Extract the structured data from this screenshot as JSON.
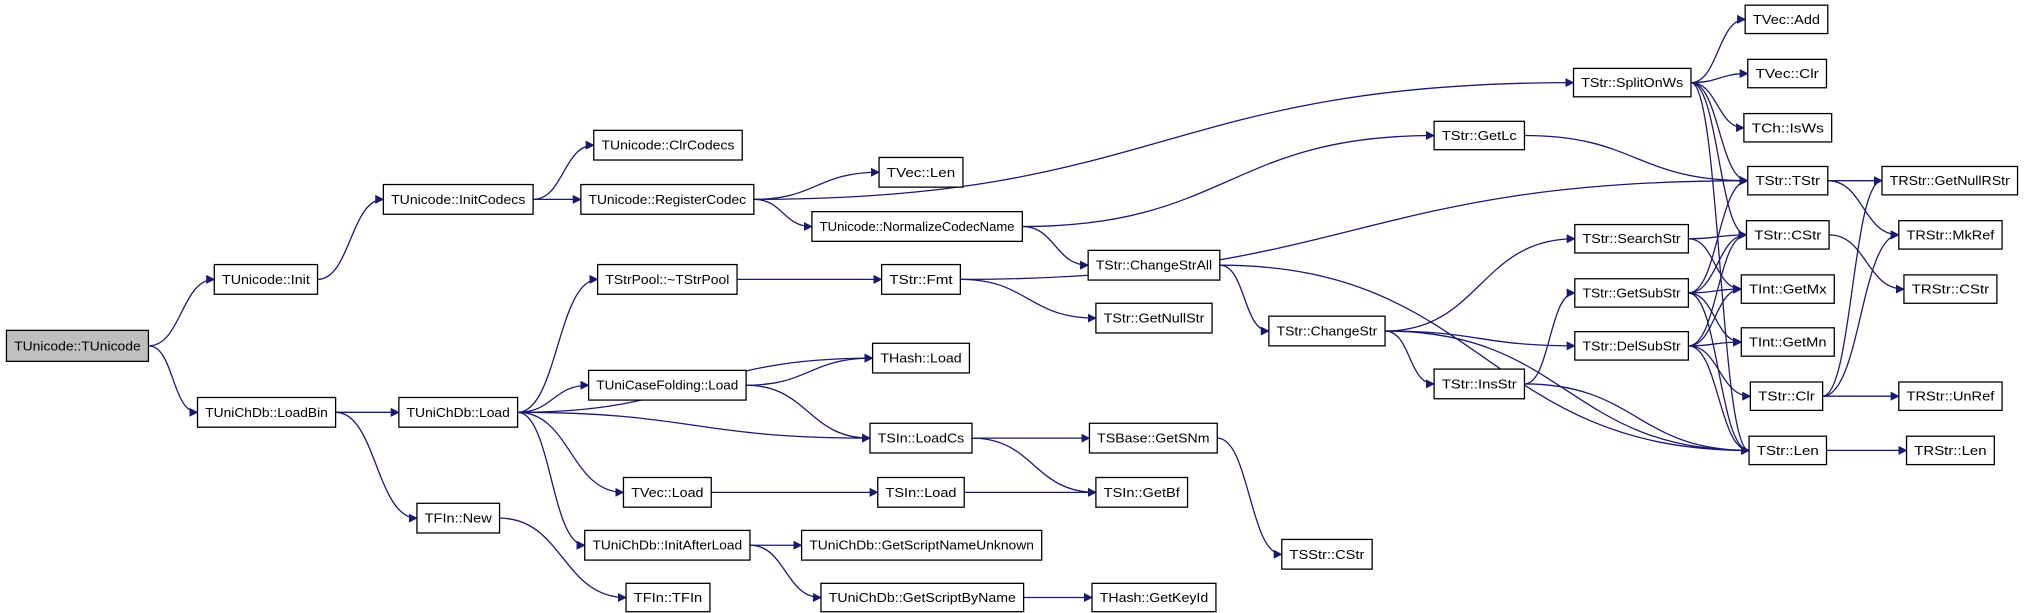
{
  "colors": {
    "edge": "#191970",
    "root_fill": "#bfbfbf",
    "node_fill": "#ffffff",
    "node_border": "#000000"
  },
  "nodes": [
    {
      "id": "tunicode_ctor",
      "label": "TUnicode::TUnicode",
      "root": true
    },
    {
      "id": "tunicode_init",
      "label": "TUnicode::Init"
    },
    {
      "id": "init_codecs",
      "label": "TUnicode::InitCodecs"
    },
    {
      "id": "clr_codecs",
      "label": "TUnicode::ClrCodecs"
    },
    {
      "id": "register_codec",
      "label": "TUnicode::RegisterCodec"
    },
    {
      "id": "tvec_len",
      "label": "TVec::Len"
    },
    {
      "id": "normalize_codec_name",
      "label": "TUnicode::NormalizeCodecName"
    },
    {
      "id": "tstrpool_dtor",
      "label": "TStrPool::~TStrPool"
    },
    {
      "id": "tstr_fmt",
      "label": "TStr::Fmt"
    },
    {
      "id": "tstr_getnullstr",
      "label": "TStr::GetNullStr"
    },
    {
      "id": "thash_load",
      "label": "THash::Load"
    },
    {
      "id": "tunicasefolding_load",
      "label": "TUniCaseFolding::Load"
    },
    {
      "id": "tunichdb_loadbin",
      "label": "TUniChDb::LoadBin"
    },
    {
      "id": "tunichdb_load",
      "label": "TUniChDb::Load"
    },
    {
      "id": "tsin_loadcs",
      "label": "TSIn::LoadCs"
    },
    {
      "id": "tsbase_getsnm",
      "label": "TSBase::GetSNm"
    },
    {
      "id": "tvec_load",
      "label": "TVec::Load"
    },
    {
      "id": "tsin_load",
      "label": "TSIn::Load"
    },
    {
      "id": "tsin_getbf",
      "label": "TSIn::GetBf"
    },
    {
      "id": "tfin_new",
      "label": "TFIn::New"
    },
    {
      "id": "init_after_load",
      "label": "TUniChDb::InitAfterLoad"
    },
    {
      "id": "get_script_name_unknown",
      "label": "TUniChDb::GetScriptNameUnknown"
    },
    {
      "id": "tsstr_cstr",
      "label": "TSStr::CStr"
    },
    {
      "id": "tfin_ctor",
      "label": "TFIn::TFIn"
    },
    {
      "id": "get_script_by_name",
      "label": "TUniChDb::GetScriptByName"
    },
    {
      "id": "thash_getkeyid",
      "label": "THash::GetKeyId"
    },
    {
      "id": "tstr_changestrall",
      "label": "TStr::ChangeStrAll"
    },
    {
      "id": "tstr_changestr",
      "label": "TStr::ChangeStr"
    },
    {
      "id": "tstr_insstr",
      "label": "TStr::InsStr"
    },
    {
      "id": "tstr_searchstr",
      "label": "TStr::SearchStr"
    },
    {
      "id": "tstr_getsubstr",
      "label": "TStr::GetSubStr"
    },
    {
      "id": "tstr_delsubstr",
      "label": "TStr::DelSubStr"
    },
    {
      "id": "tstr_splitonws",
      "label": "TStr::SplitOnWs"
    },
    {
      "id": "tstr_getlc",
      "label": "TStr::GetLc"
    },
    {
      "id": "tvec_add",
      "label": "TVec::Add"
    },
    {
      "id": "tvec_clr",
      "label": "TVec::Clr"
    },
    {
      "id": "tch_isws",
      "label": "TCh::IsWs"
    },
    {
      "id": "tstr_tstr",
      "label": "TStr::TStr"
    },
    {
      "id": "tstr_cstr",
      "label": "TStr::CStr"
    },
    {
      "id": "tint_getmx",
      "label": "TInt::GetMx"
    },
    {
      "id": "tint_getmn",
      "label": "TInt::GetMn"
    },
    {
      "id": "tstr_clr",
      "label": "TStr::Clr"
    },
    {
      "id": "tstr_len",
      "label": "TStr::Len"
    },
    {
      "id": "trstr_getnullrstr",
      "label": "TRStr::GetNullRStr"
    },
    {
      "id": "trstr_mkref",
      "label": "TRStr::MkRef"
    },
    {
      "id": "trstr_cstr",
      "label": "TRStr::CStr"
    },
    {
      "id": "trstr_unref",
      "label": "TRStr::UnRef"
    },
    {
      "id": "trstr_len",
      "label": "TRStr::Len"
    }
  ],
  "edges": [
    [
      "tunicode_ctor",
      "tunicode_init"
    ],
    [
      "tunicode_ctor",
      "tunichdb_loadbin"
    ],
    [
      "tunicode_init",
      "init_codecs"
    ],
    [
      "init_codecs",
      "clr_codecs"
    ],
    [
      "init_codecs",
      "register_codec"
    ],
    [
      "register_codec",
      "tstr_splitonws"
    ],
    [
      "register_codec",
      "tvec_len"
    ],
    [
      "register_codec",
      "normalize_codec_name"
    ],
    [
      "normalize_codec_name",
      "tstr_getlc"
    ],
    [
      "normalize_codec_name",
      "tstr_changestrall"
    ],
    [
      "tunichdb_loadbin",
      "tunichdb_load"
    ],
    [
      "tunichdb_loadbin",
      "tfin_new"
    ],
    [
      "tunichdb_load",
      "tstrpool_dtor"
    ],
    [
      "tunichdb_load",
      "thash_load"
    ],
    [
      "tunichdb_load",
      "tunicasefolding_load"
    ],
    [
      "tunichdb_load",
      "tsin_loadcs"
    ],
    [
      "tunichdb_load",
      "tvec_load"
    ],
    [
      "tunichdb_load",
      "init_after_load"
    ],
    [
      "tstrpool_dtor",
      "tstr_fmt"
    ],
    [
      "tstr_fmt",
      "tstr_tstr"
    ],
    [
      "tstr_fmt",
      "tstr_getnullstr"
    ],
    [
      "tunicasefolding_load",
      "thash_load"
    ],
    [
      "tunicasefolding_load",
      "tsin_loadcs"
    ],
    [
      "tsin_loadcs",
      "tsbase_getsnm"
    ],
    [
      "tsin_loadcs",
      "tsin_getbf"
    ],
    [
      "tvec_load",
      "tsin_load"
    ],
    [
      "tsin_load",
      "tsin_getbf"
    ],
    [
      "tsbase_getsnm",
      "tsstr_cstr"
    ],
    [
      "tfin_new",
      "tfin_ctor"
    ],
    [
      "init_after_load",
      "get_script_name_unknown"
    ],
    [
      "init_after_load",
      "get_script_by_name"
    ],
    [
      "get_script_by_name",
      "thash_getkeyid"
    ],
    [
      "tstr_changestrall",
      "tstr_changestr"
    ],
    [
      "tstr_changestrall",
      "tstr_len"
    ],
    [
      "tstr_changestr",
      "tstr_searchstr"
    ],
    [
      "tstr_changestr",
      "tstr_delsubstr"
    ],
    [
      "tstr_changestr",
      "tstr_insstr"
    ],
    [
      "tstr_changestr",
      "tstr_len"
    ],
    [
      "tstr_insstr",
      "tstr_getsubstr"
    ],
    [
      "tstr_insstr",
      "tstr_len"
    ],
    [
      "tstr_searchstr",
      "tstr_cstr"
    ],
    [
      "tstr_searchstr",
      "tint_getmx"
    ],
    [
      "tstr_getsubstr",
      "tstr_tstr"
    ],
    [
      "tstr_getsubstr",
      "tstr_cstr"
    ],
    [
      "tstr_getsubstr",
      "tint_getmx"
    ],
    [
      "tstr_getsubstr",
      "tint_getmn"
    ],
    [
      "tstr_getsubstr",
      "tstr_len"
    ],
    [
      "tstr_delsubstr",
      "tstr_cstr"
    ],
    [
      "tstr_delsubstr",
      "tint_getmx"
    ],
    [
      "tstr_delsubstr",
      "tint_getmn"
    ],
    [
      "tstr_delsubstr",
      "tstr_clr"
    ],
    [
      "tstr_delsubstr",
      "tstr_len"
    ],
    [
      "tstr_splitonws",
      "tvec_add"
    ],
    [
      "tstr_splitonws",
      "tvec_clr"
    ],
    [
      "tstr_splitonws",
      "tch_isws"
    ],
    [
      "tstr_splitonws",
      "tstr_tstr"
    ],
    [
      "tstr_splitonws",
      "tstr_cstr"
    ],
    [
      "tstr_splitonws",
      "tstr_len"
    ],
    [
      "tstr_getlc",
      "tstr_tstr"
    ],
    [
      "tstr_tstr",
      "trstr_getnullrstr"
    ],
    [
      "tstr_tstr",
      "trstr_mkref"
    ],
    [
      "tstr_cstr",
      "trstr_cstr"
    ],
    [
      "tstr_clr",
      "trstr_getnullrstr"
    ],
    [
      "tstr_clr",
      "trstr_mkref"
    ],
    [
      "tstr_clr",
      "trstr_unref"
    ],
    [
      "tstr_len",
      "trstr_len"
    ]
  ]
}
